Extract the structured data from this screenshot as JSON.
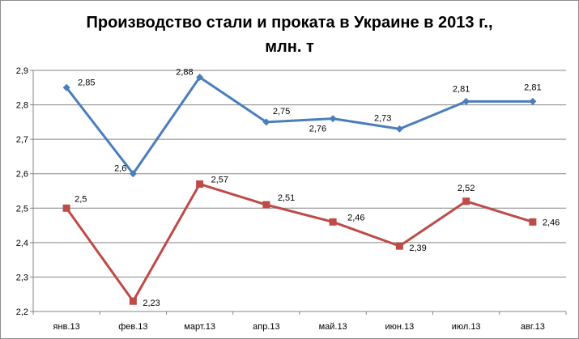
{
  "chart_data": {
    "type": "line",
    "title_line1": "Производство стали и проката в Украине в 2013 г.,",
    "title_line2": "млн. т",
    "categories": [
      "янв.13",
      "фев.13",
      "март.13",
      "апр.13",
      "май.13",
      "июн.13",
      "июл.13",
      "авг.13"
    ],
    "series": [
      {
        "color": "#4a7ebb",
        "marker": "diamond",
        "values": [
          2.85,
          2.6,
          2.88,
          2.75,
          2.76,
          2.73,
          2.81,
          2.81
        ],
        "labels": [
          "2,85",
          "2,6",
          "2,88",
          "2,75",
          "2,76",
          "2,73",
          "2,81",
          "2,81"
        ]
      },
      {
        "color": "#be4b48",
        "marker": "square",
        "values": [
          2.5,
          2.23,
          2.57,
          2.51,
          2.46,
          2.39,
          2.52,
          2.46
        ],
        "labels": [
          "2,5",
          "2,23",
          "2,57",
          "2,51",
          "2,46",
          "2,39",
          "2,52",
          "2,46"
        ]
      }
    ],
    "yticks": [
      2.2,
      2.3,
      2.4,
      2.5,
      2.6,
      2.7,
      2.8,
      2.9
    ],
    "ytick_labels": [
      "2,2",
      "2,3",
      "2,4",
      "2,5",
      "2,6",
      "2,7",
      "2,8",
      "2,9"
    ],
    "ylim": [
      2.2,
      2.9
    ],
    "grid": true,
    "legend": "none",
    "gridline_color": "#868686"
  }
}
